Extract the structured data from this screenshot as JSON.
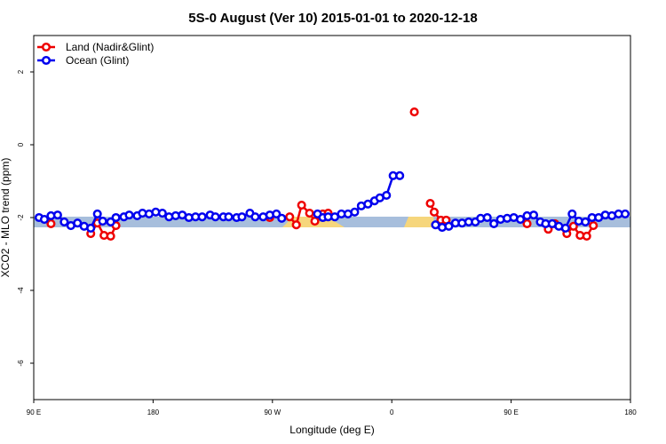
{
  "chart_data": {
    "type": "line",
    "title": "5S-0 August (Ver 10)   2015-01-01 to 2020-12-18",
    "x_label": "Longitude (deg E)",
    "y_label": "XCO2 - MLO trend (ppm)",
    "xlim": [
      90,
      540
    ],
    "ylim": [
      -7,
      3
    ],
    "xticks": [
      {
        "value": 90,
        "label": "90 E"
      },
      180,
      {
        "value": 270,
        "label": "90 W"
      },
      {
        "value": 360,
        "label": "0"
      },
      {
        "value": 450,
        "label": "90 E"
      },
      {
        "value": 540,
        "label": "180"
      }
    ],
    "yticks": [
      -6,
      -4,
      -2,
      0,
      2
    ],
    "legend": "topleft",
    "series": [
      {
        "name": "Land (Nadir&Glint)",
        "color": "#ee0000",
        "x": [
          103,
          null,
          133,
          138,
          143,
          148,
          152,
          null,
          268,
          null,
          283,
          288,
          292,
          298,
          302,
          308,
          312,
          null,
          377,
          null,
          389,
          392,
          397,
          401,
          null,
          462,
          null,
          478,
          483,
          492,
          497,
          502,
          507,
          512
        ],
        "values": [
          -2.17,
          null,
          -2.44,
          -2.15,
          -2.49,
          -2.51,
          -2.22,
          null,
          -2.0,
          null,
          -1.98,
          -2.2,
          -1.66,
          -1.88,
          -2.1,
          -1.9,
          -1.88,
          null,
          0.9,
          null,
          -1.61,
          -1.85,
          -2.07,
          -2.07,
          null,
          -2.17,
          null,
          -2.32,
          -2.17,
          -2.44,
          -2.24,
          -2.49,
          -2.51,
          -2.22
        ]
      },
      {
        "name": "Ocean (Glint)",
        "color": "#0000ee",
        "x": [
          94,
          98,
          103,
          108,
          113,
          118,
          123,
          128,
          133,
          138,
          142,
          148,
          152,
          158,
          162,
          168,
          172,
          177,
          182,
          187,
          192,
          197,
          202,
          207,
          212,
          217,
          223,
          227,
          233,
          237,
          243,
          247,
          253,
          257,
          263,
          268,
          273,
          277,
          null,
          304,
          308,
          312,
          317,
          322,
          327,
          332,
          337,
          342,
          347,
          351,
          356,
          361,
          366,
          null,
          393,
          398,
          403,
          408,
          413,
          418,
          423,
          427,
          432,
          437,
          442,
          447,
          452,
          457,
          462,
          467,
          472,
          476,
          481,
          486,
          491,
          496,
          501,
          506,
          511,
          516,
          521,
          526,
          531,
          536
        ],
        "values": [
          -2.0,
          -2.05,
          -1.95,
          -1.93,
          -2.12,
          -2.22,
          -2.15,
          -2.24,
          -2.29,
          -1.9,
          -2.1,
          -2.12,
          -2.0,
          -1.98,
          -1.93,
          -1.95,
          -1.88,
          -1.9,
          -1.85,
          -1.88,
          -1.98,
          -1.95,
          -1.93,
          -2.0,
          -1.98,
          -1.98,
          -1.93,
          -1.98,
          -1.98,
          -1.98,
          -2.0,
          -1.98,
          -1.88,
          -1.98,
          -1.98,
          -1.93,
          -1.9,
          -2.02,
          null,
          -1.9,
          -2.0,
          -1.98,
          -1.98,
          -1.9,
          -1.9,
          -1.85,
          -1.68,
          -1.63,
          -1.54,
          -1.46,
          -1.39,
          -0.85,
          -0.85,
          null,
          -2.2,
          -2.27,
          -2.24,
          -2.15,
          -2.15,
          -2.12,
          -2.12,
          -2.02,
          -2.0,
          -2.17,
          -2.05,
          -2.02,
          -2.0,
          -2.05,
          -1.95,
          -1.93,
          -2.12,
          -2.17,
          -2.17,
          -2.24,
          -2.29,
          -1.9,
          -2.1,
          -2.12,
          -2.0,
          -2.0,
          -1.93,
          -1.95,
          -1.9,
          -1.9
        ]
      }
    ]
  }
}
